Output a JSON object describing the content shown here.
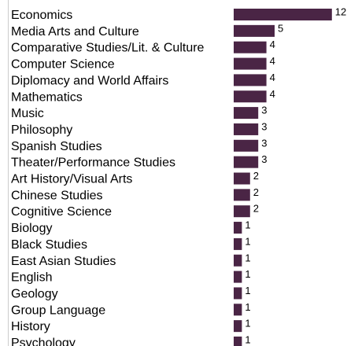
{
  "chart_data": {
    "type": "bar",
    "orientation": "horizontal",
    "categories": [
      "Economics",
      "Media Arts and Culture",
      "Comparative Studies/Lit. & Culture",
      "Computer Science",
      "Diplomacy and World Affairs",
      "Mathematics",
      "Music",
      "Philosophy",
      "Spanish Studies",
      "Theater/Performance Studies",
      "Art History/Visual Arts",
      "Chinese Studies",
      "Cognitive Science",
      "Biology",
      "Black Studies",
      "East Asian Studies",
      "English",
      "Geology",
      "Group Language",
      "History",
      "Psychology"
    ],
    "values": [
      12,
      5,
      4,
      4,
      4,
      4,
      3,
      3,
      3,
      3,
      2,
      2,
      2,
      1,
      1,
      1,
      1,
      1,
      1,
      1,
      1
    ],
    "bar_color": "#4a2545",
    "title": "",
    "xlabel": "",
    "ylabel": "",
    "grid": false,
    "legend": "none",
    "data_labels": true
  }
}
